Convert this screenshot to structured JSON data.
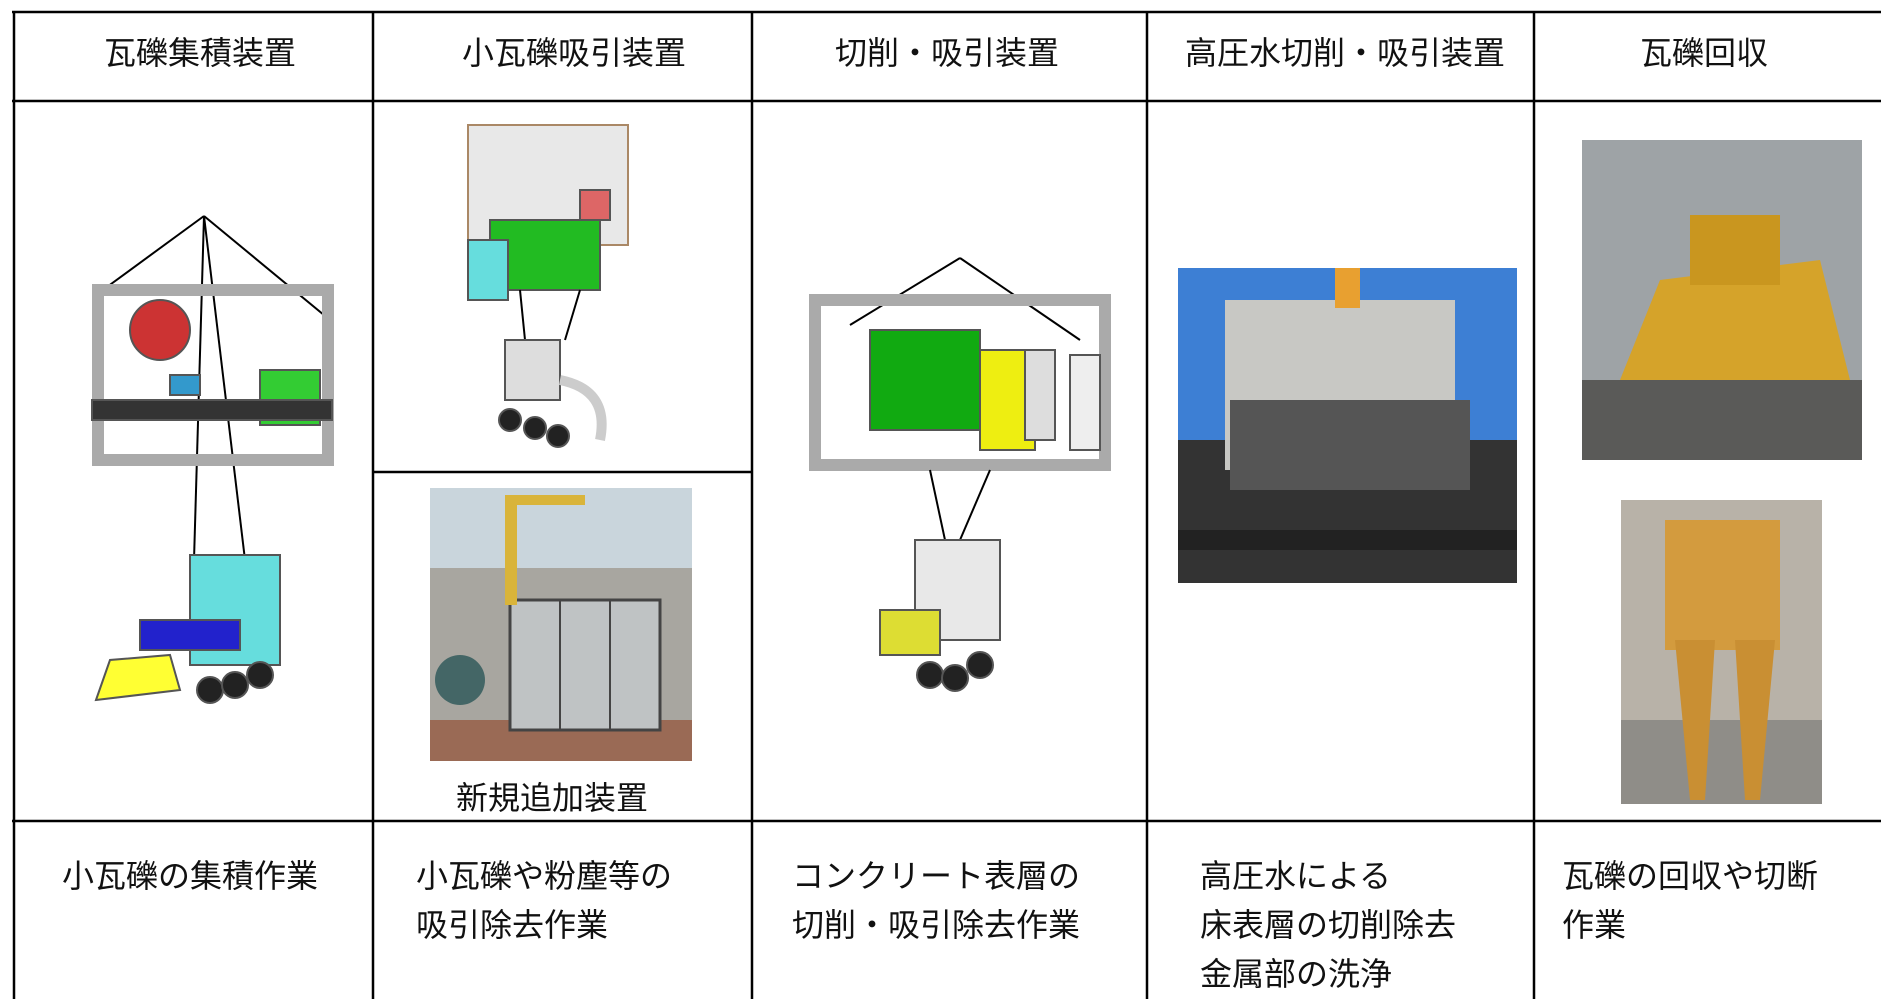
{
  "table": {
    "headers": [
      "瓦礫集積装置",
      "小瓦礫吸引装置",
      "切削・吸引装置",
      "高圧水切削・吸引装置",
      "瓦礫回収"
    ],
    "new_device_caption": "新規追加装置",
    "descriptions": [
      [
        "小瓦礫の集積作業"
      ],
      [
        "小瓦礫や粉塵等の",
        "吸引除去作業"
      ],
      [
        "コンクリート表層の",
        "切削・吸引除去作業"
      ],
      [
        "高圧水による",
        "床表層の切削除去",
        "金属部の洗浄"
      ],
      [
        "瓦礫の回収や切断",
        "作業"
      ]
    ]
  }
}
